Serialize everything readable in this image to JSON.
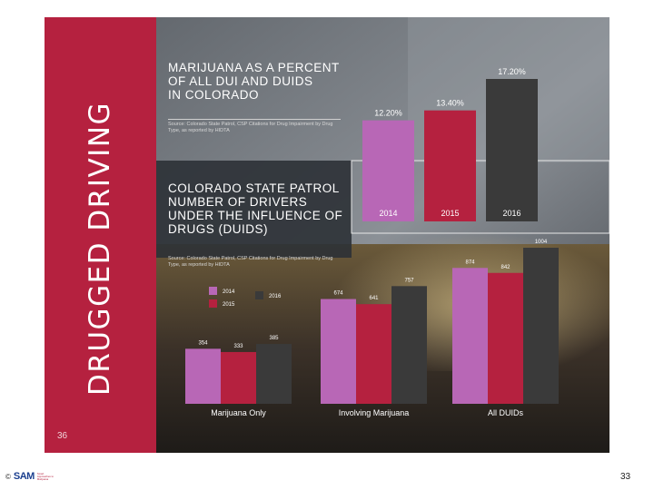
{
  "slide": {
    "side_title": "DRUGGED DRIVING",
    "inner_page_number": "36",
    "footer_page_number": "33",
    "footer_copyright": "©",
    "footer_logo_text": "SAM",
    "footer_logo_tagline": "Smart Approaches to Marijuana"
  },
  "colors": {
    "y2014": "#b867b6",
    "y2015": "#b5213f",
    "y2016": "#3a3a3a",
    "sidebar": "#b5213f"
  },
  "chart_data": [
    {
      "type": "bar",
      "title": "MARIJUANA AS A PERCENT\nOF ALL DUI AND DUIDS\nIN COLORADO",
      "source": "Source: Colorado State Patrol, CSP Citations for Drug Impairment by Drug Type, as reported by HIDTA",
      "categories": [
        "2014",
        "2015",
        "2016"
      ],
      "values": [
        12.2,
        13.4,
        17.2
      ],
      "value_labels": [
        "12.20%",
        "13.40%",
        "17.20%"
      ],
      "ylim": [
        0,
        17.2
      ],
      "grid": false
    },
    {
      "type": "bar",
      "title": "COLORADO STATE PATROL\nNUMBER OF DRIVERS\nUNDER THE INFLUENCE OF\nDRUGS (DUIDS)",
      "source": "Source: Colorado State Patrol, CSP Citations for Drug Impairment by Drug Type, as reported by HIDTA",
      "categories": [
        "Marijuana Only",
        "Involving Marijuana",
        "All DUIDs"
      ],
      "series": [
        {
          "name": "2014",
          "values": [
            354,
            674,
            874
          ]
        },
        {
          "name": "2015",
          "values": [
            333,
            641,
            842
          ]
        },
        {
          "name": "2016",
          "values": [
            385,
            757,
            1004
          ]
        }
      ],
      "ylim": [
        0,
        1004
      ],
      "legend": "top-left",
      "grid": false
    }
  ]
}
